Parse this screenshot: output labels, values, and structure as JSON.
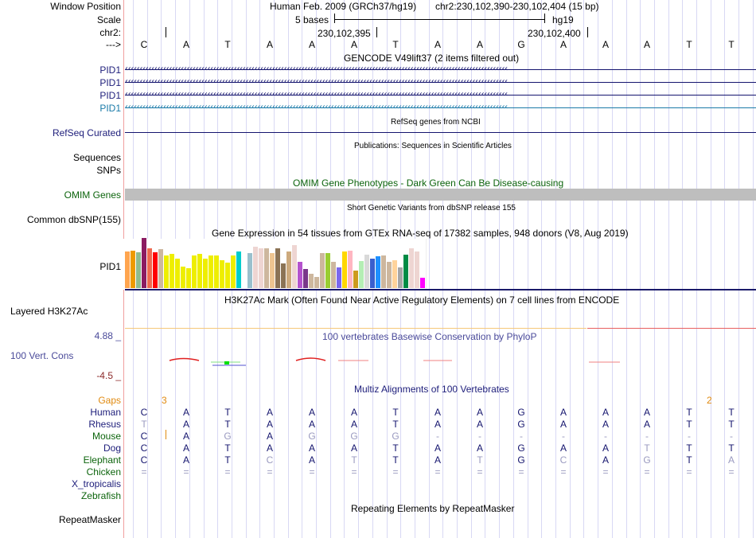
{
  "header": {
    "window_position_label": "Window Position",
    "scale_label": "Scale",
    "chrom_label": "chr2:",
    "strand_label": "--->",
    "assembly": "Human Feb. 2009 (GRCh37/hg19)",
    "position": "chr2:230,102,390-230,102,404 (15 bp)",
    "scale_text": "5 bases",
    "scale_db": "hg19",
    "ticks": [
      "230,102,395",
      "230,102,400"
    ]
  },
  "sequence": [
    "C",
    "A",
    "T",
    "A",
    "A",
    "A",
    "T",
    "A",
    "A",
    "G",
    "A",
    "A",
    "A",
    "T",
    "T"
  ],
  "tracks": {
    "gencode": {
      "title": "GENCODE V49lift37 (2 items filtered out)",
      "items": [
        {
          "label": "PID1",
          "color": "#14146e"
        },
        {
          "label": "PID1",
          "color": "#14146e"
        },
        {
          "label": "PID1",
          "color": "#14146e"
        },
        {
          "label": "PID1",
          "color": "#1a7aa8"
        }
      ]
    },
    "refseq": {
      "title": "RefSeq genes from NCBI",
      "label": "RefSeq Curated"
    },
    "publications": {
      "title": "Publications: Sequences in Scientific Articles",
      "label_line1": "Sequences",
      "label_line2": "SNPs"
    },
    "omim": {
      "title": "OMIM Gene Phenotypes - Dark Green Can Be Disease-causing",
      "label": "OMIM Genes"
    },
    "dbsnp": {
      "title": "Short Genetic Variants from dbSNP release 155",
      "label": "Common dbSNP(155)"
    },
    "gtex": {
      "title": "Gene Expression in 54 tissues from GTEx RNA-seq of 17382 samples, 948 donors (V8, Aug 2019)",
      "label": "PID1",
      "bars": [
        {
          "v": 0.73,
          "c": "#ffa54f"
        },
        {
          "v": 0.75,
          "c": "#ee9a00"
        },
        {
          "v": 0.71,
          "c": "#8fbc8f"
        },
        {
          "v": 1.0,
          "c": "#8b1c62"
        },
        {
          "v": 0.79,
          "c": "#ee6a50"
        },
        {
          "v": 0.71,
          "c": "#ff0000"
        },
        {
          "v": 0.77,
          "c": "#cdb79e"
        },
        {
          "v": 0.65,
          "c": "#eeee00"
        },
        {
          "v": 0.68,
          "c": "#eeee00"
        },
        {
          "v": 0.59,
          "c": "#eeee00"
        },
        {
          "v": 0.43,
          "c": "#eeee00"
        },
        {
          "v": 0.39,
          "c": "#eeee00"
        },
        {
          "v": 0.65,
          "c": "#eeee00"
        },
        {
          "v": 0.68,
          "c": "#eeee00"
        },
        {
          "v": 0.59,
          "c": "#eeee00"
        },
        {
          "v": 0.65,
          "c": "#eeee00"
        },
        {
          "v": 0.65,
          "c": "#eeee00"
        },
        {
          "v": 0.55,
          "c": "#eeee00"
        },
        {
          "v": 0.51,
          "c": "#eeee00"
        },
        {
          "v": 0.65,
          "c": "#eeee00"
        },
        {
          "v": 0.73,
          "c": "#00cdcd"
        },
        {
          "v": 0.0,
          "c": "#9ac0cd"
        },
        {
          "v": 0.7,
          "c": "#9ac0cd"
        },
        {
          "v": 0.83,
          "c": "#eed5d2"
        },
        {
          "v": 0.8,
          "c": "#eed5d2"
        },
        {
          "v": 0.8,
          "c": "#cdb79e"
        },
        {
          "v": 0.7,
          "c": "#eec591"
        },
        {
          "v": 0.8,
          "c": "#8b7355"
        },
        {
          "v": 0.49,
          "c": "#8b7355"
        },
        {
          "v": 0.73,
          "c": "#cdaa7d"
        },
        {
          "v": 0.86,
          "c": "#eed5d2"
        },
        {
          "v": 0.53,
          "c": "#b452cd"
        },
        {
          "v": 0.38,
          "c": "#7a378b"
        },
        {
          "v": 0.29,
          "c": "#cdb79e"
        },
        {
          "v": 0.23,
          "c": "#cdb79e"
        },
        {
          "v": 0.7,
          "c": "#cdb79e"
        },
        {
          "v": 0.7,
          "c": "#9acd32"
        },
        {
          "v": 0.53,
          "c": "#cdb79e"
        },
        {
          "v": 0.41,
          "c": "#7b68ee"
        },
        {
          "v": 0.73,
          "c": "#ffd700"
        },
        {
          "v": 0.75,
          "c": "#ffb6c1"
        },
        {
          "v": 0.35,
          "c": "#cd9b1d"
        },
        {
          "v": 0.54,
          "c": "#b4eeb4"
        },
        {
          "v": 0.67,
          "c": "#d9d9d9"
        },
        {
          "v": 0.59,
          "c": "#3a5fcd"
        },
        {
          "v": 0.63,
          "c": "#1e90ff"
        },
        {
          "v": 0.65,
          "c": "#cdb79e"
        },
        {
          "v": 0.53,
          "c": "#cdb79e"
        },
        {
          "v": 0.55,
          "c": "#ffd39b"
        },
        {
          "v": 0.41,
          "c": "#a6a6a6"
        },
        {
          "v": 0.67,
          "c": "#008b45"
        },
        {
          "v": 0.8,
          "c": "#eed5d2"
        },
        {
          "v": 0.73,
          "c": "#eed5d2"
        },
        {
          "v": 0.2,
          "c": "#ff00ff"
        }
      ]
    },
    "h3k27ac": {
      "title": "H3K27Ac Mark (Often Found Near Active Regulatory Elements) on 7 cell lines from ENCODE",
      "label": "Layered H3K27Ac"
    },
    "phylop": {
      "title": "100 vertebrates Basewise Conservation by PhyloP",
      "label": "100 Vert. Cons",
      "max": "4.88 _",
      "min": "-4.5 _"
    },
    "multiz": {
      "title": "Multiz Alignments of 100 Vertebrates",
      "gaps_label": "Gaps",
      "gaps": [
        {
          "after_col": 0,
          "value": "3"
        },
        {
          "after_col": 13,
          "value": "2"
        }
      ],
      "species": [
        {
          "name": "Human",
          "color": "navy",
          "seq": "CATAAATAAGAAATT"
        },
        {
          "name": "Rhesus",
          "color": "navy",
          "seq": "TATAAATAAGAAATT"
        },
        {
          "name": "Mouse",
          "color": "green",
          "seq": "CAGAGGG--------"
        },
        {
          "name": "Dog",
          "color": "navy",
          "seq": "CATAAATAAGAATTT"
        },
        {
          "name": "Elephant",
          "color": "green",
          "seq": "CATCATTATGCAGTA"
        },
        {
          "name": "Chicken",
          "color": "green",
          "seq": "==============="
        },
        {
          "name": "X_tropicalis",
          "color": "navy",
          "seq": ""
        },
        {
          "name": "Zebrafish",
          "color": "green",
          "seq": ""
        }
      ]
    },
    "repeatmasker": {
      "title": "Repeating Elements by RepeatMasker",
      "label": "RepeatMasker"
    }
  }
}
